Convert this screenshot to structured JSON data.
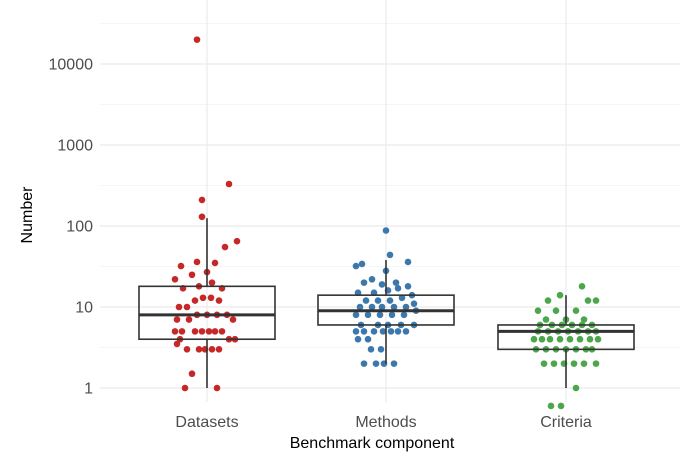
{
  "chart_data": {
    "type": "scatter",
    "subtype": "jittered-strip-with-boxplot",
    "xlabel": "Benchmark component",
    "ylabel": "Number",
    "y_scale": "log10",
    "ylim": [
      0.6,
      30000
    ],
    "y_ticks": [
      1,
      10,
      100,
      1000,
      10000
    ],
    "y_tick_labels": [
      "1",
      "10",
      "100",
      "1000",
      "10000"
    ],
    "grid": true,
    "legend": "none",
    "categories": [
      "Datasets",
      "Methods",
      "Criteria"
    ],
    "series": [
      {
        "category": "Datasets",
        "color": "#C62828",
        "box": {
          "min": 1,
          "q1": 4,
          "median": 8,
          "q3": 18,
          "max": 125
        },
        "points": [
          {
            "x": -0.22,
            "y": 1
          },
          {
            "x": 0.1,
            "y": 1
          },
          {
            "x": -0.15,
            "y": 1.5
          },
          {
            "x": -0.3,
            "y": 3.5
          },
          {
            "x": -0.27,
            "y": 4
          },
          {
            "x": -0.2,
            "y": 3
          },
          {
            "x": -0.08,
            "y": 3
          },
          {
            "x": -0.02,
            "y": 3
          },
          {
            "x": 0.05,
            "y": 3
          },
          {
            "x": 0.12,
            "y": 3
          },
          {
            "x": -0.32,
            "y": 5
          },
          {
            "x": -0.25,
            "y": 5
          },
          {
            "x": -0.12,
            "y": 5
          },
          {
            "x": -0.05,
            "y": 5
          },
          {
            "x": 0.02,
            "y": 5
          },
          {
            "x": 0.08,
            "y": 5
          },
          {
            "x": 0.15,
            "y": 5
          },
          {
            "x": 0.22,
            "y": 4
          },
          {
            "x": 0.28,
            "y": 4
          },
          {
            "x": -0.3,
            "y": 7
          },
          {
            "x": -0.18,
            "y": 7
          },
          {
            "x": -0.1,
            "y": 8
          },
          {
            "x": 0.0,
            "y": 8
          },
          {
            "x": 0.1,
            "y": 8
          },
          {
            "x": 0.2,
            "y": 8
          },
          {
            "x": 0.26,
            "y": 7
          },
          {
            "x": -0.28,
            "y": 10
          },
          {
            "x": -0.2,
            "y": 10
          },
          {
            "x": -0.12,
            "y": 12
          },
          {
            "x": -0.04,
            "y": 13
          },
          {
            "x": 0.04,
            "y": 13
          },
          {
            "x": 0.12,
            "y": 12
          },
          {
            "x": -0.24,
            "y": 17
          },
          {
            "x": -0.08,
            "y": 18
          },
          {
            "x": 0.05,
            "y": 20
          },
          {
            "x": 0.15,
            "y": 17
          },
          {
            "x": -0.32,
            "y": 22
          },
          {
            "x": -0.15,
            "y": 25
          },
          {
            "x": 0.0,
            "y": 27
          },
          {
            "x": -0.26,
            "y": 32
          },
          {
            "x": -0.1,
            "y": 36
          },
          {
            "x": 0.08,
            "y": 35
          },
          {
            "x": 0.18,
            "y": 55
          },
          {
            "x": 0.3,
            "y": 65
          },
          {
            "x": -0.05,
            "y": 130
          },
          {
            "x": -0.05,
            "y": 210
          },
          {
            "x": 0.22,
            "y": 330
          },
          {
            "x": -0.1,
            "y": 20000
          }
        ]
      },
      {
        "category": "Methods",
        "color": "#3C78AC",
        "box": {
          "min": 2,
          "q1": 6,
          "median": 9,
          "q3": 14,
          "max": 38
        },
        "points": [
          {
            "x": -0.22,
            "y": 2
          },
          {
            "x": -0.1,
            "y": 2
          },
          {
            "x": -0.02,
            "y": 2
          },
          {
            "x": 0.08,
            "y": 2
          },
          {
            "x": -0.15,
            "y": 3
          },
          {
            "x": -0.05,
            "y": 3
          },
          {
            "x": -0.28,
            "y": 4
          },
          {
            "x": -0.18,
            "y": 4
          },
          {
            "x": -0.3,
            "y": 5
          },
          {
            "x": -0.22,
            "y": 5
          },
          {
            "x": -0.12,
            "y": 5
          },
          {
            "x": -0.03,
            "y": 5
          },
          {
            "x": 0.05,
            "y": 5
          },
          {
            "x": 0.12,
            "y": 5
          },
          {
            "x": 0.2,
            "y": 5
          },
          {
            "x": 0.28,
            "y": 6
          },
          {
            "x": -0.25,
            "y": 6
          },
          {
            "x": -0.08,
            "y": 6
          },
          {
            "x": 0.02,
            "y": 6
          },
          {
            "x": 0.15,
            "y": 6
          },
          {
            "x": -0.3,
            "y": 8
          },
          {
            "x": -0.18,
            "y": 8
          },
          {
            "x": -0.06,
            "y": 8
          },
          {
            "x": 0.06,
            "y": 8
          },
          {
            "x": 0.18,
            "y": 8
          },
          {
            "x": 0.3,
            "y": 9
          },
          {
            "x": -0.26,
            "y": 10
          },
          {
            "x": -0.14,
            "y": 10
          },
          {
            "x": -0.04,
            "y": 10
          },
          {
            "x": 0.08,
            "y": 10
          },
          {
            "x": 0.2,
            "y": 10
          },
          {
            "x": 0.28,
            "y": 11
          },
          {
            "x": -0.2,
            "y": 12
          },
          {
            "x": -0.08,
            "y": 12
          },
          {
            "x": 0.04,
            "y": 12
          },
          {
            "x": 0.16,
            "y": 13
          },
          {
            "x": 0.26,
            "y": 14
          },
          {
            "x": -0.28,
            "y": 15
          },
          {
            "x": -0.12,
            "y": 15
          },
          {
            "x": 0.02,
            "y": 16
          },
          {
            "x": 0.12,
            "y": 17
          },
          {
            "x": 0.22,
            "y": 18
          },
          {
            "x": -0.22,
            "y": 20
          },
          {
            "x": -0.04,
            "y": 19
          },
          {
            "x": 0.1,
            "y": 20
          },
          {
            "x": -0.14,
            "y": 22
          },
          {
            "x": 0.0,
            "y": 28
          },
          {
            "x": -0.3,
            "y": 32
          },
          {
            "x": -0.24,
            "y": 34
          },
          {
            "x": 0.22,
            "y": 36
          },
          {
            "x": 0.04,
            "y": 44
          },
          {
            "x": 0.0,
            "y": 88
          }
        ]
      },
      {
        "category": "Criteria",
        "color": "#4CA64C",
        "box": {
          "min": 1,
          "q1": 3,
          "median": 5,
          "q3": 6,
          "max": 14
        },
        "points": [
          {
            "x": -0.15,
            "y": 0.6
          },
          {
            "x": -0.05,
            "y": 0.6
          },
          {
            "x": 0.1,
            "y": 1
          },
          {
            "x": -0.22,
            "y": 2
          },
          {
            "x": -0.12,
            "y": 2
          },
          {
            "x": -0.02,
            "y": 2
          },
          {
            "x": 0.08,
            "y": 2
          },
          {
            "x": 0.18,
            "y": 2
          },
          {
            "x": 0.3,
            "y": 2
          },
          {
            "x": -0.3,
            "y": 3
          },
          {
            "x": -0.2,
            "y": 3
          },
          {
            "x": -0.1,
            "y": 3
          },
          {
            "x": 0.0,
            "y": 3
          },
          {
            "x": 0.1,
            "y": 3
          },
          {
            "x": 0.2,
            "y": 3
          },
          {
            "x": 0.26,
            "y": 3
          },
          {
            "x": -0.32,
            "y": 4
          },
          {
            "x": -0.24,
            "y": 4
          },
          {
            "x": -0.16,
            "y": 4
          },
          {
            "x": -0.06,
            "y": 4
          },
          {
            "x": 0.04,
            "y": 4
          },
          {
            "x": 0.14,
            "y": 4
          },
          {
            "x": 0.24,
            "y": 4
          },
          {
            "x": 0.32,
            "y": 4
          },
          {
            "x": -0.28,
            "y": 5
          },
          {
            "x": -0.18,
            "y": 5
          },
          {
            "x": -0.08,
            "y": 5
          },
          {
            "x": 0.02,
            "y": 5
          },
          {
            "x": 0.12,
            "y": 5
          },
          {
            "x": 0.22,
            "y": 5
          },
          {
            "x": 0.3,
            "y": 5
          },
          {
            "x": -0.26,
            "y": 6
          },
          {
            "x": -0.14,
            "y": 6
          },
          {
            "x": -0.04,
            "y": 6
          },
          {
            "x": 0.06,
            "y": 6
          },
          {
            "x": 0.16,
            "y": 6
          },
          {
            "x": 0.26,
            "y": 6
          },
          {
            "x": -0.2,
            "y": 7
          },
          {
            "x": 0.0,
            "y": 7
          },
          {
            "x": 0.18,
            "y": 7
          },
          {
            "x": -0.28,
            "y": 9
          },
          {
            "x": -0.1,
            "y": 9
          },
          {
            "x": 0.1,
            "y": 9
          },
          {
            "x": 0.22,
            "y": 12
          },
          {
            "x": 0.3,
            "y": 12
          },
          {
            "x": -0.18,
            "y": 12
          },
          {
            "x": 0.16,
            "y": 18
          },
          {
            "x": -0.06,
            "y": 14
          }
        ]
      }
    ]
  }
}
